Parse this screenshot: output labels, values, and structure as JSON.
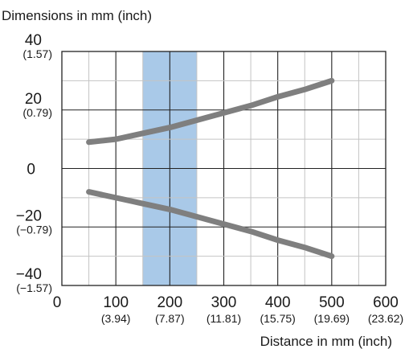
{
  "chart_data": {
    "type": "line",
    "ylabel": "Dimensions in mm (inch)",
    "xlabel": "Distance in mm (inch)",
    "xlim": [
      0,
      600
    ],
    "ylim": [
      -40,
      40
    ],
    "grid": true,
    "x_ticks": [
      {
        "value": 0,
        "label": "0",
        "sub": ""
      },
      {
        "value": 100,
        "label": "100",
        "sub": "(3.94)"
      },
      {
        "value": 200,
        "label": "200",
        "sub": "(7.87)"
      },
      {
        "value": 300,
        "label": "300",
        "sub": "(11.81)"
      },
      {
        "value": 400,
        "label": "400",
        "sub": "(15.75)"
      },
      {
        "value": 500,
        "label": "500",
        "sub": "(19.69)"
      },
      {
        "value": 600,
        "label": "600",
        "sub": "(23.62)"
      }
    ],
    "y_ticks": [
      {
        "value": 40,
        "label": "40",
        "sub": "(1.57)"
      },
      {
        "value": 20,
        "label": "20",
        "sub": "(0.79)"
      },
      {
        "value": 0,
        "label": "0",
        "sub": ""
      },
      {
        "value": -20,
        "label": "−20",
        "sub": "(−0.79)"
      },
      {
        "value": -40,
        "label": "−40",
        "sub": "(−1.57)"
      }
    ],
    "highlight_band": {
      "x_from": 150,
      "x_to": 250,
      "color": "#a9c9e8"
    },
    "series": [
      {
        "color": "#7f7f7f",
        "x": [
          50,
          100,
          150,
          200,
          250,
          300,
          350,
          400,
          450,
          500
        ],
        "y": [
          9,
          10,
          12,
          14,
          16.5,
          19,
          21.5,
          24.5,
          27,
          30
        ]
      },
      {
        "color": "#7f7f7f",
        "x": [
          50,
          100,
          150,
          200,
          250,
          300,
          350,
          400,
          450,
          500
        ],
        "y": [
          -8,
          -10,
          -12,
          -14,
          -16.5,
          -19,
          -21.5,
          -24.5,
          -27,
          -30
        ]
      }
    ]
  }
}
